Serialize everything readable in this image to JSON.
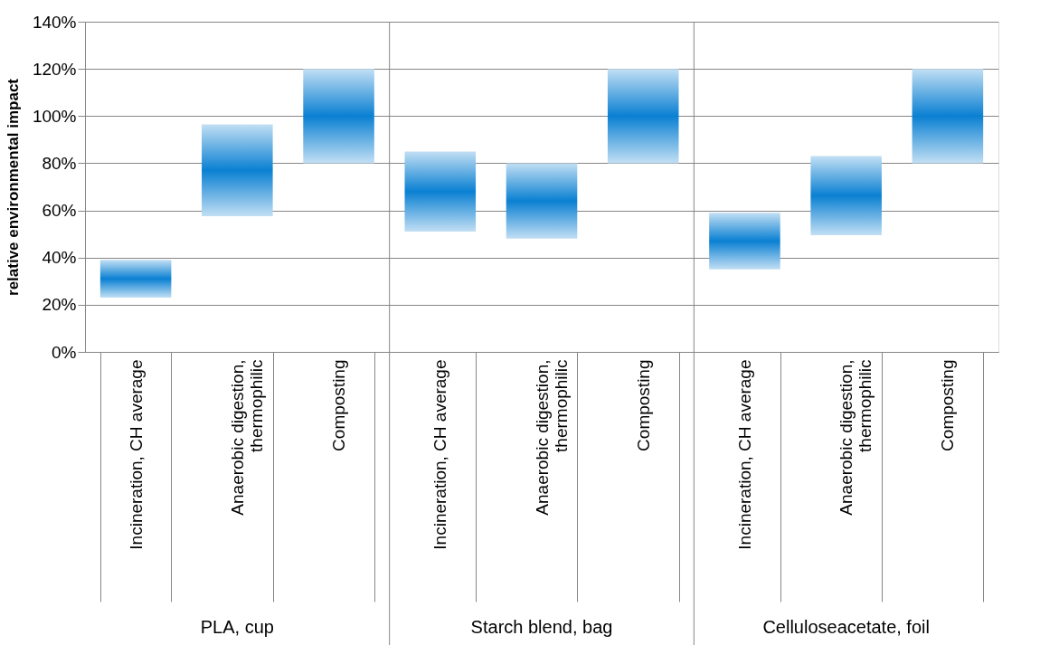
{
  "chart_data": {
    "type": "bar",
    "categories": [
      "Incineration, CH average",
      "Anaerobic digestion, thermophilic",
      "Composting",
      "Incineration, CH average",
      "Anaerobic digestion, thermophilic",
      "Composting",
      "Incineration, CH average",
      "Anaerobic digestion, thermophilic",
      "Composting"
    ],
    "series": [
      {
        "color": "#0a80d2",
        "values": [
          16,
          39,
          40,
          34,
          32,
          40,
          24,
          33.5,
          40
        ],
        "base": [
          23,
          57.5,
          80,
          51,
          48,
          80,
          35,
          49.5,
          80
        ]
      }
    ],
    "ylabel": "relative environmental impact",
    "ylim": [
      0,
      140
    ],
    "yticks": [
      {
        "value": 0,
        "label": "0%"
      },
      {
        "value": 20,
        "label": "20%"
      },
      {
        "value": 40,
        "label": "40%"
      },
      {
        "value": 60,
        "label": "60%"
      },
      {
        "value": 80,
        "label": "80%"
      },
      {
        "value": 100,
        "label": "100%"
      },
      {
        "value": 120,
        "label": "120%"
      },
      {
        "value": 140,
        "label": "140%"
      }
    ],
    "annotations": [
      "PLA, cup",
      "Starch blend, bag",
      "Celluloseacetate, foil"
    ],
    "grid": "y"
  }
}
